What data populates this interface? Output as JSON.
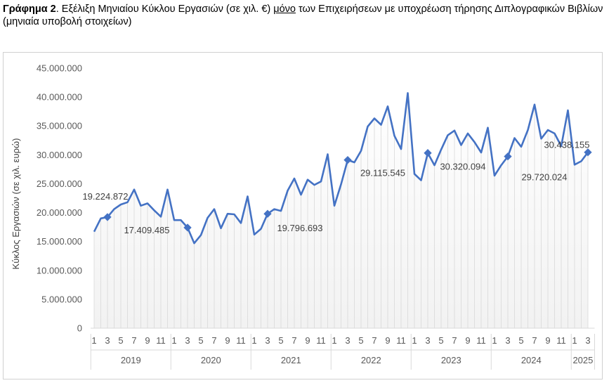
{
  "caption": {
    "label": "Γράφημα 2",
    "text_part1": ". Εξέλιξη Μηνιαίου Κύκλου Εργασιών (σε χιλ. €) ",
    "underlined": "μόνο",
    "text_part2": " των Επιχειρήσεων με υποχρέωση τήρησης Διπλογραφικών Βιβλίων (μηνιαία υποβολή στοιχείων)"
  },
  "chart_data": {
    "type": "area",
    "title": "Εξέλιξη Μηνιαίου Κύκλου Εργασιών (σε χιλ. €) μόνο των Επιχειρήσεων με υποχρέωση τήρησης Διπλογραφικών Βιβλίων (μηνιαία υποβολή στοιχείων)",
    "xlabel": "",
    "ylabel": "Κύκλος Εργασιών (σε χιλ. ευρώ)",
    "ylim": [
      0,
      45000000
    ],
    "yticks": [
      0,
      5000000,
      10000000,
      15000000,
      20000000,
      25000000,
      30000000,
      35000000,
      40000000,
      45000000
    ],
    "ytick_labels": [
      "0",
      "5.000.000",
      "10.000.000",
      "15.000.000",
      "20.000.000",
      "25.000.000",
      "30.000.000",
      "35.000.000",
      "40.000.000",
      "45.000.000"
    ],
    "years": [
      "2019",
      "2020",
      "2021",
      "2022",
      "2023",
      "2024",
      "2025"
    ],
    "month_tick_labels": [
      "1",
      "3",
      "5",
      "7",
      "9",
      "11"
    ],
    "grid": false,
    "color": "#4472c4",
    "series": [
      {
        "name": "Κύκλος Εργασιών",
        "values": [
          16700000,
          19000000,
          19224872,
          20600000,
          21400000,
          21800000,
          24000000,
          21200000,
          21600000,
          20400000,
          19300000,
          24000000,
          18700000,
          18700000,
          17409485,
          14700000,
          16100000,
          19100000,
          20600000,
          17300000,
          19800000,
          19700000,
          18200000,
          22800000,
          16200000,
          17200000,
          19796693,
          20600000,
          20300000,
          23800000,
          25900000,
          23100000,
          25700000,
          24800000,
          25400000,
          30100000,
          21200000,
          24900000,
          29115545,
          28700000,
          30700000,
          34900000,
          36300000,
          35200000,
          38400000,
          33300000,
          31000000,
          40700000,
          26700000,
          25600000,
          30320094,
          28200000,
          30900000,
          33400000,
          34200000,
          31700000,
          33700000,
          32200000,
          30400000,
          34700000,
          26400000,
          28200000,
          29720024,
          32900000,
          31400000,
          34300000,
          38700000,
          32800000,
          34300000,
          33700000,
          31500000,
          37700000,
          28300000,
          28900000,
          30438155
        ]
      }
    ],
    "annotations": [
      {
        "index": 2,
        "label": "19.224.872"
      },
      {
        "index": 14,
        "label": "17.409.485"
      },
      {
        "index": 26,
        "label": "19.796.693"
      },
      {
        "index": 38,
        "label": "29.115.545"
      },
      {
        "index": 50,
        "label": "30.320.094"
      },
      {
        "index": 62,
        "label": "29.720.024"
      },
      {
        "index": 74,
        "label": "30.438.155"
      }
    ]
  }
}
